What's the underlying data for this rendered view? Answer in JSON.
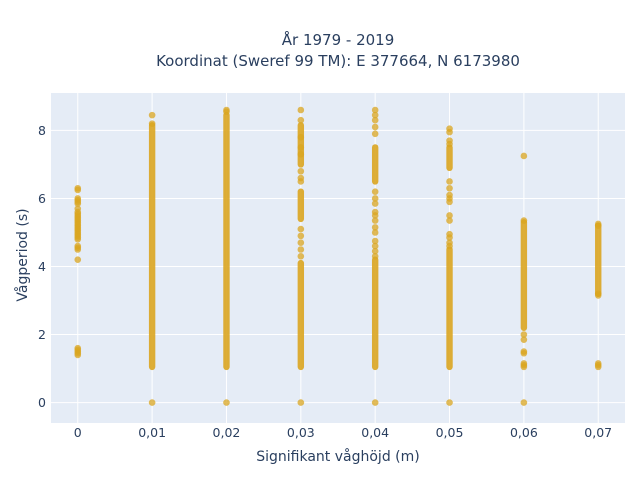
{
  "chart_data": {
    "type": "scatter",
    "title_lines": [
      "År 1979 - 2019",
      "Koordinat (Sweref 99 TM): E 377664, N 6173980"
    ],
    "xlabel": "Signifikant våghöjd (m)",
    "ylabel": "Vågperiod (s)",
    "x_ticks": [
      {
        "value": 0,
        "label": "0"
      },
      {
        "value": 0.01,
        "label": "0,01"
      },
      {
        "value": 0.02,
        "label": "0,02"
      },
      {
        "value": 0.03,
        "label": "0,03"
      },
      {
        "value": 0.04,
        "label": "0,04"
      },
      {
        "value": 0.05,
        "label": "0,05"
      },
      {
        "value": 0.06,
        "label": "0,06"
      },
      {
        "value": 0.07,
        "label": "0,07"
      }
    ],
    "y_ticks": [
      {
        "value": 0,
        "label": "0"
      },
      {
        "value": 2,
        "label": "2"
      },
      {
        "value": 4,
        "label": "4"
      },
      {
        "value": 6,
        "label": "6"
      },
      {
        "value": 8,
        "label": "8"
      }
    ],
    "xlim": [
      -0.0036,
      0.0736
    ],
    "ylim": [
      -0.6,
      9.1
    ],
    "grid": true,
    "marker_color": "#daa520",
    "plot_bg": "#e5ecf6",
    "columns": [
      {
        "x": 0.0,
        "dense": [],
        "points": [
          6.3,
          6.25,
          6.0,
          5.95,
          5.9,
          5.85,
          5.7,
          5.6,
          5.55,
          5.5,
          5.45,
          5.4,
          5.35,
          5.3,
          5.25,
          5.2,
          5.15,
          5.1,
          5.05,
          5.0,
          4.95,
          4.9,
          4.85,
          4.8,
          4.6,
          4.55,
          4.5,
          4.2,
          1.6,
          1.55,
          1.5,
          1.45,
          1.4
        ]
      },
      {
        "x": 0.01,
        "dense": [
          [
            1.05,
            8.15
          ]
        ],
        "points": [
          8.45,
          8.2,
          0.0
        ]
      },
      {
        "x": 0.02,
        "dense": [
          [
            1.05,
            8.45
          ]
        ],
        "points": [
          8.6,
          8.55,
          0.0
        ]
      },
      {
        "x": 0.03,
        "dense": [
          [
            1.05,
            4.1
          ],
          [
            5.4,
            6.2
          ],
          [
            7.0,
            8.15
          ]
        ],
        "points": [
          8.6,
          8.3,
          7.8,
          7.5,
          7.3,
          6.8,
          6.6,
          6.5,
          5.1,
          4.9,
          4.7,
          4.5,
          4.3,
          0.0
        ]
      },
      {
        "x": 0.04,
        "dense": [
          [
            1.05,
            4.2
          ],
          [
            6.5,
            7.5
          ]
        ],
        "points": [
          8.6,
          8.45,
          8.3,
          8.1,
          7.9,
          6.2,
          6.0,
          5.85,
          5.6,
          5.5,
          5.35,
          5.15,
          5.0,
          4.75,
          4.6,
          4.45,
          4.3,
          0.0
        ]
      },
      {
        "x": 0.05,
        "dense": [
          [
            1.05,
            4.5
          ],
          [
            6.9,
            7.5
          ]
        ],
        "points": [
          8.05,
          7.95,
          7.7,
          7.6,
          6.5,
          6.3,
          6.1,
          6.0,
          5.9,
          5.5,
          5.35,
          4.95,
          4.85,
          4.7,
          4.6,
          0.0
        ]
      },
      {
        "x": 0.06,
        "dense": [
          [
            2.2,
            5.3
          ]
        ],
        "points": [
          7.25,
          5.35,
          2.0,
          1.85,
          1.5,
          1.45,
          1.15,
          1.1,
          1.05,
          0.0
        ]
      },
      {
        "x": 0.07,
        "dense": [
          [
            3.2,
            5.2
          ]
        ],
        "points": [
          5.25,
          5.2,
          3.2,
          3.15,
          1.15,
          1.1,
          1.05
        ]
      }
    ]
  }
}
